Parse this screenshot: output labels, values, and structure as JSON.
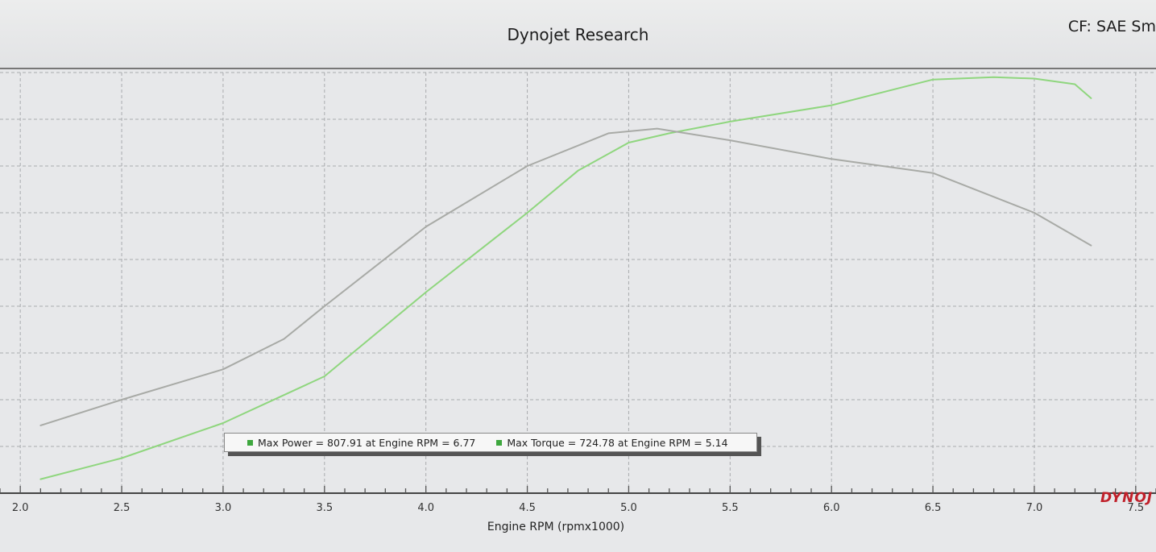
{
  "header": {
    "title": "Dynojet Research",
    "correction_factor": "CF: SAE Sm"
  },
  "logo_text": "DYNOJ",
  "chart_data": {
    "type": "line",
    "xlabel": "Engine RPM (rpmx1000)",
    "ylabel": "",
    "xlim": [
      1.9,
      7.6
    ],
    "ylim": [
      0,
      9
    ],
    "x_ticks": [
      "2.0",
      "2.5",
      "3.0",
      "3.5",
      "4.0",
      "4.5",
      "5.0",
      "5.5",
      "6.0",
      "6.5",
      "7.0",
      "7.5"
    ],
    "grid": true,
    "legend": "bottom-center",
    "legend_entries": [
      {
        "text": "Max Power = 807.91 at Engine RPM = 6.77",
        "color": "#3fa83f"
      },
      {
        "text": "Max Torque = 724.78 at Engine RPM = 5.14",
        "color": "#3fa83f"
      }
    ],
    "series": [
      {
        "color": "#8fd67e",
        "x": [
          2.1,
          2.5,
          3.0,
          3.2,
          3.5,
          4.0,
          4.5,
          4.75,
          5.0,
          5.2,
          5.5,
          6.0,
          6.5,
          6.8,
          7.0,
          7.2,
          7.28
        ],
        "y": [
          0.3,
          0.75,
          1.5,
          1.9,
          2.5,
          4.3,
          6.0,
          6.9,
          7.5,
          7.7,
          7.95,
          8.3,
          8.85,
          8.9,
          8.87,
          8.75,
          8.45
        ]
      },
      {
        "color": "#a8aaa6",
        "x": [
          2.1,
          2.5,
          3.0,
          3.3,
          3.5,
          4.0,
          4.5,
          4.9,
          5.14,
          5.5,
          6.0,
          6.5,
          7.0,
          7.28
        ],
        "y": [
          1.45,
          2.0,
          2.65,
          3.3,
          4.0,
          5.7,
          7.0,
          7.7,
          7.8,
          7.55,
          7.15,
          6.85,
          6.0,
          5.3
        ]
      }
    ]
  }
}
